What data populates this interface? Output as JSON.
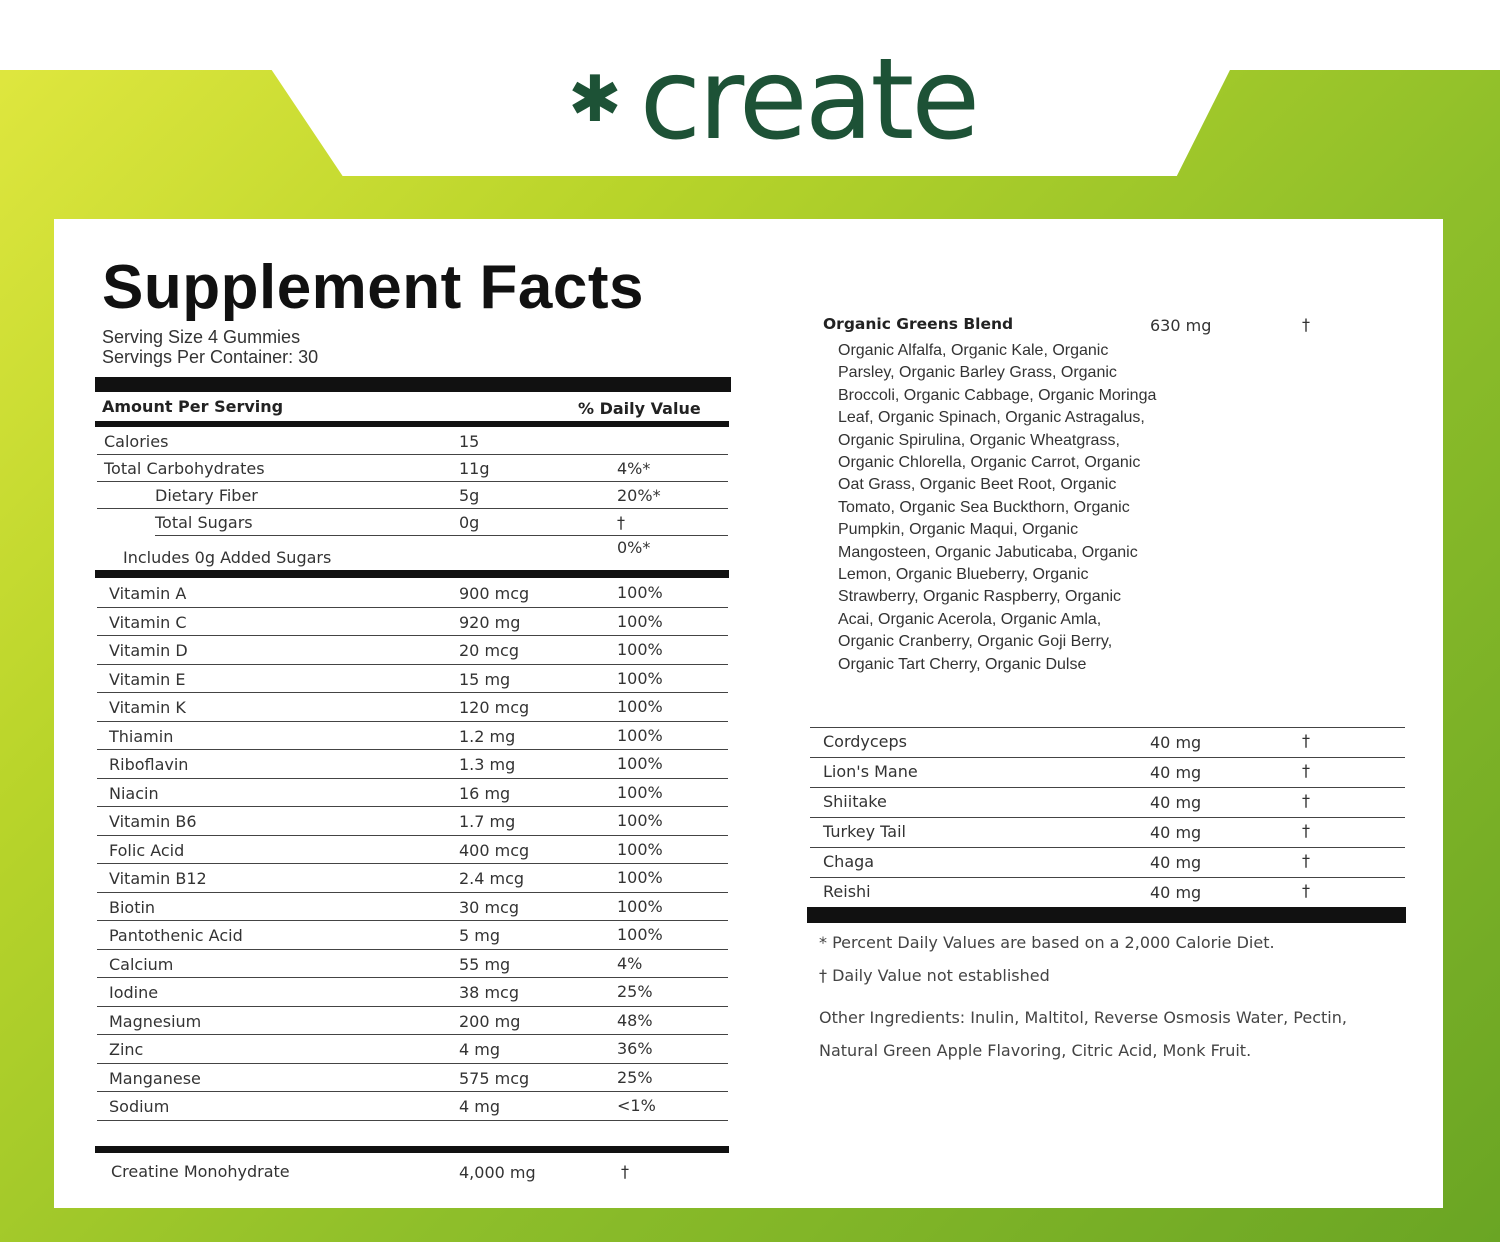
{
  "brand": {
    "logo_text": "create",
    "logo_color": "#1d5236"
  },
  "title": "Supplement Facts",
  "serving_size": "Serving Size 4 Gummies",
  "servings_per_container": "Servings Per Container: 30",
  "header": {
    "amount": "Amount Per Serving",
    "dv": "% Daily Value"
  },
  "macros": [
    {
      "name": "Calories",
      "amount": "15",
      "dv": ""
    },
    {
      "name": "Total Carbohydrates",
      "amount": "11g",
      "dv": "4%*"
    },
    {
      "name": "Dietary Fiber",
      "amount": "5g",
      "dv": "20%*"
    },
    {
      "name": "Total Sugars",
      "amount": "0g",
      "dv": "†"
    },
    {
      "name": "Includes 0g Added Sugars",
      "amount": "",
      "dv": "0%*"
    }
  ],
  "nutrients": [
    {
      "name": "Vitamin A",
      "amount": "900 mcg",
      "dv": "100%"
    },
    {
      "name": "Vitamin C",
      "amount": "920 mg",
      "dv": "100%"
    },
    {
      "name": "Vitamin D",
      "amount": "20 mcg",
      "dv": "100%"
    },
    {
      "name": "Vitamin E",
      "amount": "15 mg",
      "dv": "100%"
    },
    {
      "name": "Vitamin K",
      "amount": "120 mcg",
      "dv": "100%"
    },
    {
      "name": "Thiamin",
      "amount": "1.2 mg",
      "dv": "100%"
    },
    {
      "name": "Riboflavin",
      "amount": "1.3 mg",
      "dv": "100%"
    },
    {
      "name": "Niacin",
      "amount": "16 mg",
      "dv": "100%"
    },
    {
      "name": "Vitamin B6",
      "amount": "1.7 mg",
      "dv": "100%"
    },
    {
      "name": "Folic Acid",
      "amount": "400 mcg",
      "dv": "100%"
    },
    {
      "name": "Vitamin B12",
      "amount": "2.4 mcg",
      "dv": "100%"
    },
    {
      "name": "Biotin",
      "amount": "30 mcg",
      "dv": "100%"
    },
    {
      "name": "Pantothenic Acid",
      "amount": "5 mg",
      "dv": "100%"
    },
    {
      "name": "Calcium",
      "amount": "55 mg",
      "dv": "4%"
    },
    {
      "name": "Iodine",
      "amount": "38 mcg",
      "dv": "25%"
    },
    {
      "name": "Magnesium",
      "amount": "200 mg",
      "dv": "48%"
    },
    {
      "name": "Zinc",
      "amount": "4 mg",
      "dv": "36%"
    },
    {
      "name": "Manganese",
      "amount": "575 mcg",
      "dv": "25%"
    },
    {
      "name": "Sodium",
      "amount": "4 mg",
      "dv": "<1%"
    }
  ],
  "creatine": {
    "name": "Creatine Monohydrate",
    "amount": "4,000 mg",
    "dv": "†"
  },
  "greens": {
    "name": "Organic Greens Blend",
    "amount": "630 mg",
    "dv": "†",
    "ingredients": "Organic Alfalfa, Organic Kale, Organic Parsley, Organic Barley Grass, Organic Broccoli, Organic Cabbage, Organic Moringa Leaf, Organic Spinach, Organic Astragalus, Organic Spirulina, Organic Wheatgrass, Organic Chlorella, Organic Carrot, Organic Oat Grass, Organic Beet Root, Organic Tomato, Organic Sea Buckthorn, Organic Pumpkin, Organic Maqui, Organic Mangosteen, Organic Jabuticaba, Organic Lemon, Organic Blueberry, Organic Strawberry, Organic Raspberry, Organic Acai, Organic Acerola, Organic Amla, Organic Cranberry, Organic Goji Berry, Organic Tart Cherry, Organic Dulse"
  },
  "mushrooms": [
    {
      "name": "Cordyceps",
      "amount": "40 mg",
      "dv": "†"
    },
    {
      "name": "Lion's Mane",
      "amount": "40 mg",
      "dv": "†"
    },
    {
      "name": "Shiitake",
      "amount": "40 mg",
      "dv": "†"
    },
    {
      "name": "Turkey Tail",
      "amount": "40 mg",
      "dv": "†"
    },
    {
      "name": "Chaga",
      "amount": "40 mg",
      "dv": "†"
    },
    {
      "name": "Reishi",
      "amount": "40 mg",
      "dv": "†"
    }
  ],
  "footnotes": {
    "percent": "* Percent Daily Values are based on a 2,000 Calorie Diet.",
    "dagger": "† Daily Value not established",
    "other_1": "Other Ingredients: Inulin, Maltitol, Reverse Osmosis Water, Pectin,",
    "other_2": "Natural Green Apple Flavoring, Citric Acid, Monk Fruit."
  }
}
